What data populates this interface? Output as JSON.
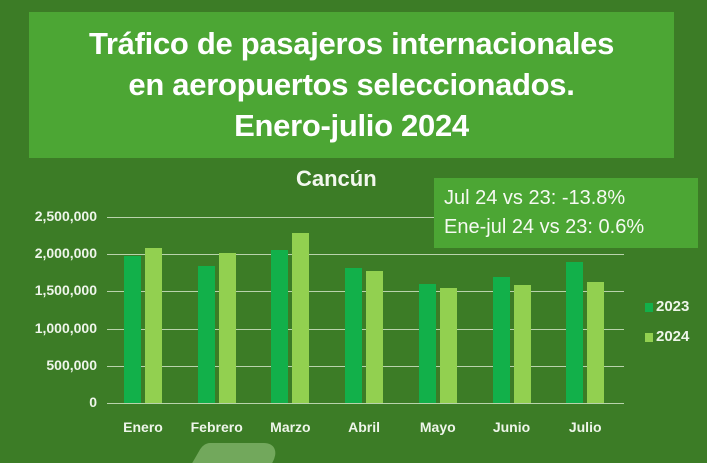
{
  "title": {
    "lines": [
      "Tráfico de pasajeros internacionales",
      "en aeropuertos seleccionados.",
      "Enero-julio 2024"
    ]
  },
  "subtitle": "Cancún",
  "stats": {
    "line1": "Jul 24 vs 23: -13.8%",
    "line2": "Ene-jul 24 vs 23: 0.6%"
  },
  "colors": {
    "background": "#3c7c26",
    "title_box": "#4ca634",
    "series_2023": "#12b04a",
    "series_2024": "#92d050"
  },
  "chart_data": {
    "type": "bar",
    "title": "Cancún",
    "categories": [
      "Enero",
      "Febrero",
      "Marzo",
      "Abril",
      "Mayo",
      "Junio",
      "Julio"
    ],
    "series": [
      {
        "name": "2023",
        "values": [
          1970000,
          1840000,
          2050000,
          1810000,
          1600000,
          1700000,
          1890000
        ]
      },
      {
        "name": "2024",
        "values": [
          2080000,
          2020000,
          2280000,
          1780000,
          1540000,
          1580000,
          1620000
        ]
      }
    ],
    "yticks": [
      "0",
      "500,000",
      "1,000,000",
      "1,500,000",
      "2,000,000",
      "2,500,000"
    ],
    "ylim": [
      0,
      2500000
    ],
    "grid": true,
    "legend_position": "right",
    "xlabel": "",
    "ylabel": ""
  }
}
